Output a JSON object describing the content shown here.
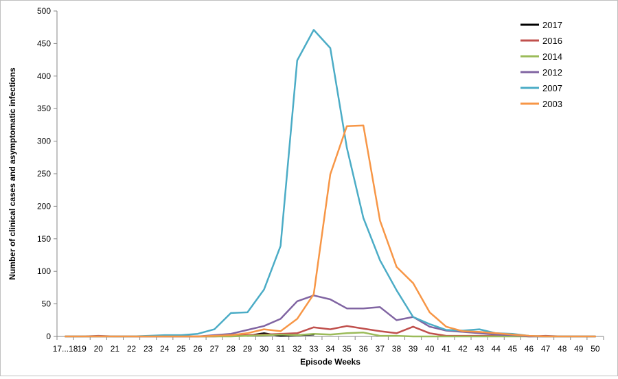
{
  "chart_data": {
    "type": "line",
    "title": "",
    "xlabel": "Episode Weeks",
    "ylabel": "Number of clinical cases and asymptomatic infections",
    "ylim": [
      0,
      500
    ],
    "yticks": [
      0,
      50,
      100,
      150,
      200,
      250,
      300,
      350,
      400,
      450,
      500
    ],
    "grid": false,
    "legend_position": "top-right",
    "categories": [
      "17...18",
      "19",
      "20",
      "21",
      "22",
      "23",
      "24",
      "25",
      "26",
      "27",
      "28",
      "29",
      "30",
      "31",
      "32",
      "33",
      "34",
      "35",
      "36",
      "37",
      "38",
      "39",
      "40",
      "41",
      "42",
      "43",
      "44",
      "45",
      "46",
      "47",
      "48",
      "49",
      "50"
    ],
    "series": [
      {
        "name": "2017",
        "color": "#000000",
        "values": [
          null,
          null,
          null,
          null,
          null,
          null,
          null,
          null,
          null,
          null,
          null,
          1,
          5,
          1,
          2,
          3,
          null,
          null,
          null,
          null,
          null,
          null,
          null,
          null,
          null,
          null,
          null,
          null,
          null,
          null,
          null,
          null,
          null
        ]
      },
      {
        "name": "2016",
        "color": "#c0504d",
        "values": [
          0,
          0,
          1,
          0,
          0,
          0,
          0,
          0,
          0,
          0,
          1,
          2,
          3,
          4,
          5,
          14,
          11,
          16,
          12,
          8,
          5,
          15,
          5,
          1,
          1,
          1,
          1,
          1,
          0,
          1,
          0,
          0,
          0
        ]
      },
      {
        "name": "2014",
        "color": "#9bbb59",
        "values": [
          0,
          0,
          0,
          0,
          0,
          0,
          0,
          0,
          0,
          0,
          0,
          1,
          2,
          3,
          2,
          4,
          3,
          5,
          6,
          1,
          1,
          0,
          0,
          0,
          0,
          0,
          0,
          0,
          0,
          0,
          0,
          0,
          0
        ]
      },
      {
        "name": "2012",
        "color": "#8064a2",
        "values": [
          0,
          0,
          0,
          0,
          0,
          0,
          0,
          0,
          0,
          2,
          4,
          10,
          16,
          27,
          54,
          63,
          57,
          43,
          43,
          45,
          25,
          30,
          15,
          9,
          7,
          5,
          3,
          2,
          0,
          0,
          0,
          0,
          0
        ]
      },
      {
        "name": "2007",
        "color": "#4bacc6",
        "values": [
          0,
          0,
          0,
          0,
          0,
          1,
          2,
          2,
          4,
          11,
          36,
          37,
          72,
          139,
          424,
          471,
          443,
          290,
          182,
          117,
          71,
          30,
          19,
          10,
          9,
          11,
          5,
          4,
          1,
          0,
          0,
          0,
          0
        ]
      },
      {
        "name": "2003",
        "color": "#f79646",
        "values": [
          0,
          0,
          0,
          0,
          0,
          0,
          0,
          0,
          0,
          1,
          2,
          5,
          11,
          8,
          27,
          65,
          249,
          323,
          324,
          178,
          107,
          82,
          37,
          15,
          8,
          7,
          5,
          3,
          1,
          0,
          0,
          0,
          0
        ]
      }
    ]
  }
}
